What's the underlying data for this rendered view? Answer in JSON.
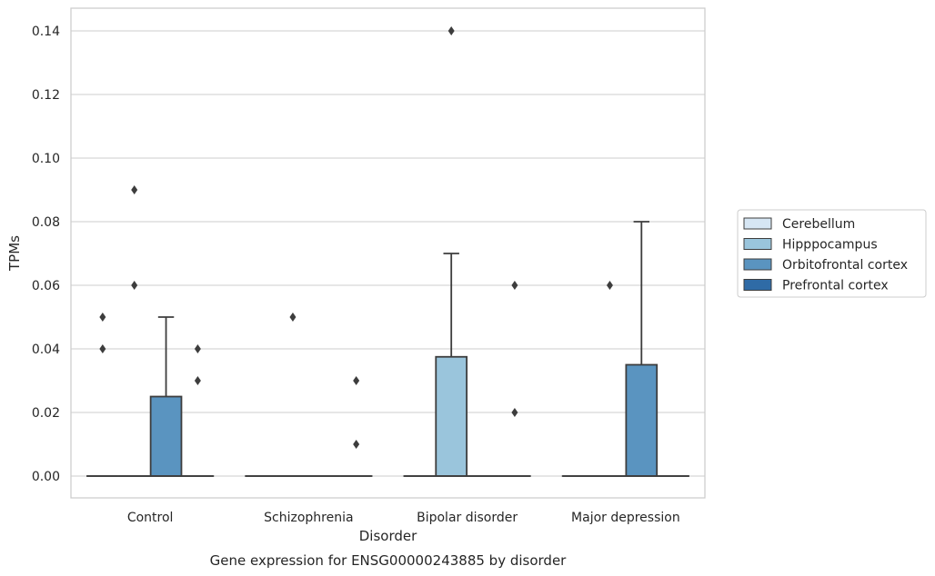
{
  "chart_data": {
    "type": "box",
    "caption": "Gene expression for ENSG00000243885 by disorder",
    "xlabel": "Disorder",
    "ylabel": "TPMs",
    "ylim": [
      -0.007,
      0.147
    ],
    "yticks": [
      "0.00",
      "0.02",
      "0.04",
      "0.06",
      "0.08",
      "0.10",
      "0.12",
      "0.14"
    ],
    "grid": true,
    "legend_position": "right",
    "categories": [
      "Control",
      "Schizophrenia",
      "Bipolar disorder",
      "Major depression"
    ],
    "series": [
      {
        "name": "Cerebellum",
        "color": "#d6e6f4",
        "boxes": [
          {
            "q1": 0,
            "median": 0,
            "q3": 0,
            "whislo": 0,
            "whishi": 0,
            "fliers": [
              0.04,
              0.05
            ]
          },
          {
            "q1": 0,
            "median": 0,
            "q3": 0,
            "whislo": 0,
            "whishi": 0,
            "fliers": []
          },
          {
            "q1": 0,
            "median": 0,
            "q3": 0,
            "whislo": 0,
            "whishi": 0,
            "fliers": []
          },
          {
            "q1": 0,
            "median": 0,
            "q3": 0,
            "whislo": 0,
            "whishi": 0,
            "fliers": []
          }
        ]
      },
      {
        "name": "Hipppocampus",
        "color": "#9ac5dc",
        "boxes": [
          {
            "q1": 0,
            "median": 0,
            "q3": 0,
            "whislo": 0,
            "whishi": 0,
            "fliers": [
              0.06,
              0.09
            ]
          },
          {
            "q1": 0,
            "median": 0,
            "q3": 0,
            "whislo": 0,
            "whishi": 0,
            "fliers": [
              0.05
            ]
          },
          {
            "q1": 0,
            "median": 0,
            "q3": 0.0375,
            "whislo": 0,
            "whishi": 0.07,
            "fliers": [
              0.14
            ]
          },
          {
            "q1": 0,
            "median": 0,
            "q3": 0,
            "whislo": 0,
            "whishi": 0,
            "fliers": [
              0.06
            ]
          }
        ]
      },
      {
        "name": "Orbitofrontal cortex",
        "color": "#5a94c0",
        "boxes": [
          {
            "q1": 0,
            "median": 0,
            "q3": 0.025,
            "whislo": 0,
            "whishi": 0.05,
            "fliers": []
          },
          {
            "q1": 0,
            "median": 0,
            "q3": 0,
            "whislo": 0,
            "whishi": 0,
            "fliers": []
          },
          {
            "q1": 0,
            "median": 0,
            "q3": 0,
            "whislo": 0,
            "whishi": 0,
            "fliers": []
          },
          {
            "q1": 0,
            "median": 0,
            "q3": 0.035,
            "whislo": 0,
            "whishi": 0.08,
            "fliers": []
          }
        ]
      },
      {
        "name": "Prefrontal cortex",
        "color": "#2f6ba6",
        "boxes": [
          {
            "q1": 0,
            "median": 0,
            "q3": 0,
            "whislo": 0,
            "whishi": 0,
            "fliers": [
              0.03,
              0.04
            ]
          },
          {
            "q1": 0,
            "median": 0,
            "q3": 0,
            "whislo": 0,
            "whishi": 0,
            "fliers": [
              0.01,
              0.03
            ]
          },
          {
            "q1": 0,
            "median": 0,
            "q3": 0,
            "whislo": 0,
            "whishi": 0,
            "fliers": [
              0.02,
              0.06
            ]
          },
          {
            "q1": 0,
            "median": 0,
            "q3": 0,
            "whislo": 0,
            "whishi": 0,
            "fliers": []
          }
        ]
      }
    ]
  }
}
